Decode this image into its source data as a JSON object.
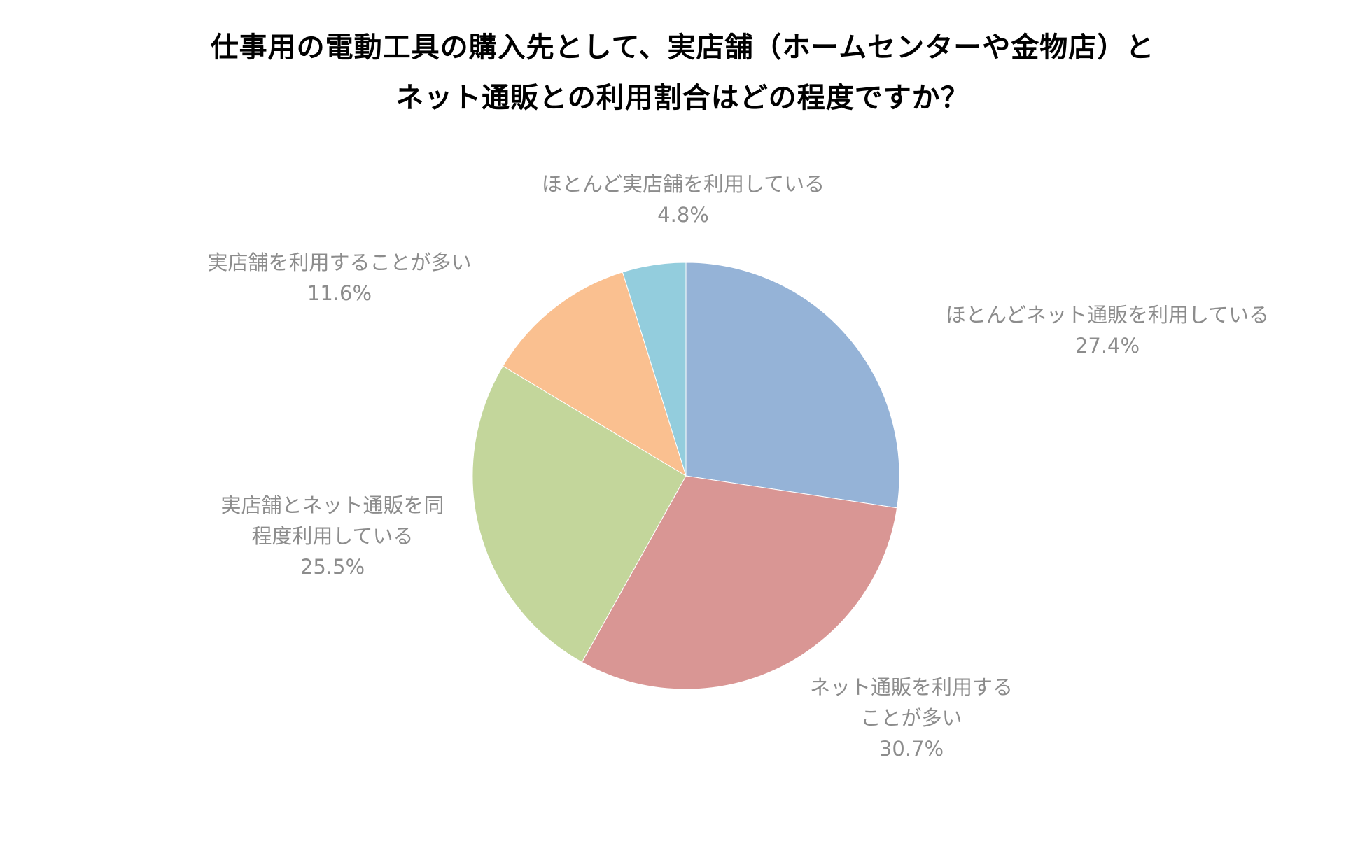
{
  "chart_data": {
    "type": "pie",
    "title_lines": [
      "仕事用の電動工具の購入先として、実店舗（ホームセンターや金物店）と",
      "ネット通販との利用割合はどの程度ですか？"
    ],
    "start_angle_deg": 0,
    "direction": "clockwise",
    "slices": [
      {
        "label_lines": [
          "ほとんどネット通販を利用している"
        ],
        "value": 27.4,
        "value_label": "27.4%",
        "color": "#95B3D7"
      },
      {
        "label_lines": [
          "ネット通販を利用する",
          "ことが多い"
        ],
        "value": 30.7,
        "value_label": "30.7%",
        "color": "#D99694"
      },
      {
        "label_lines": [
          "実店舗とネット通販を同",
          "程度利用している"
        ],
        "value": 25.5,
        "value_label": "25.5%",
        "color": "#C3D69B"
      },
      {
        "label_lines": [
          "実店舗を利用することが多い"
        ],
        "value": 11.6,
        "value_label": "11.6%",
        "color": "#FAC090"
      },
      {
        "label_lines": [
          "ほとんど実店舗を利用している"
        ],
        "value": 4.8,
        "value_label": "4.8%",
        "color": "#93CDDD"
      }
    ],
    "label_color": "#8C8C8C",
    "legend": "none"
  }
}
